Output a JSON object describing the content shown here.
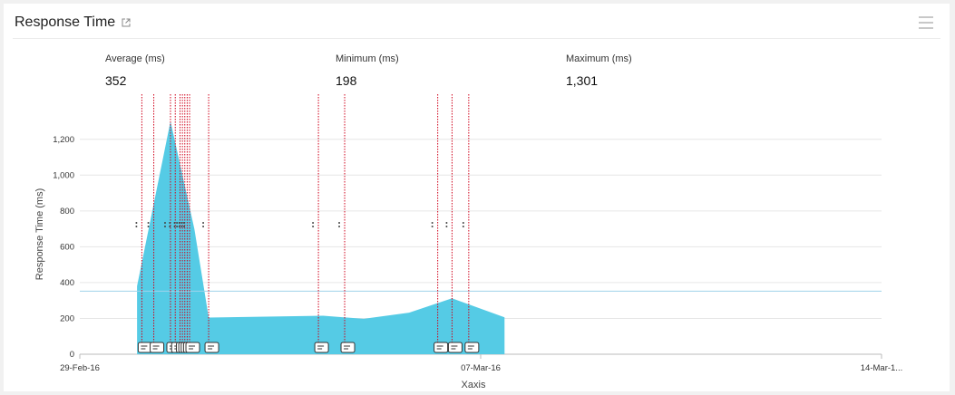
{
  "widget": {
    "title": "Response Time",
    "stats": [
      {
        "label": "Average (ms)",
        "value": "352"
      },
      {
        "label": "Minimum (ms)",
        "value": "198"
      },
      {
        "label": "Maximum (ms)",
        "value": "1,301"
      }
    ]
  },
  "colors": {
    "area": "#55cbe5",
    "event_line": "#d0021b",
    "avg_line": "#9fd3ea",
    "grid": "#e6e6e6"
  },
  "chart_data": {
    "type": "area",
    "xlabel": "Xaxis",
    "ylabel": "Response Time (ms)",
    "ylim": [
      0,
      1300
    ],
    "xlim": [
      "2016-02-29",
      "2016-03-14"
    ],
    "yticks": [
      0,
      200,
      400,
      600,
      800,
      1000,
      1200
    ],
    "ytick_labels": [
      "0",
      "200",
      "400",
      "600",
      "800",
      "1,000",
      "1,200"
    ],
    "xtick_labels": [
      {
        "date": "2016-02-29",
        "label": "29-Feb-16"
      },
      {
        "date": "2016-03-07",
        "label": "07-Mar-16"
      },
      {
        "date": "2016-03-14",
        "label": "14-Mar-1..."
      }
    ],
    "average": 352,
    "grid": true,
    "series": [
      {
        "points": [
          {
            "x": "2016-03-01 00:00",
            "y": 380
          },
          {
            "x": "2016-03-01 14:00",
            "y": 1301
          },
          {
            "x": "2016-03-02 00:00",
            "y": 700
          },
          {
            "x": "2016-03-02 06:00",
            "y": 205
          },
          {
            "x": "2016-03-04 06:00",
            "y": 215
          },
          {
            "x": "2016-03-04 23:00",
            "y": 198
          },
          {
            "x": "2016-03-05 18:00",
            "y": 232
          },
          {
            "x": "2016-03-06 12:00",
            "y": 312
          },
          {
            "x": "2016-03-07 10:00",
            "y": 206
          }
        ]
      }
    ],
    "events": [
      "2016-03-01 02:00",
      "2016-03-01 07:00",
      "2016-03-01 14:00",
      "2016-03-01 16:00",
      "2016-03-01 18:00",
      "2016-03-01 19:00",
      "2016-03-01 20:00",
      "2016-03-01 21:00",
      "2016-03-01 22:00",
      "2016-03-02 06:00",
      "2016-03-04 04:00",
      "2016-03-04 15:00",
      "2016-03-06 06:00",
      "2016-03-06 12:00",
      "2016-03-06 19:00"
    ]
  }
}
